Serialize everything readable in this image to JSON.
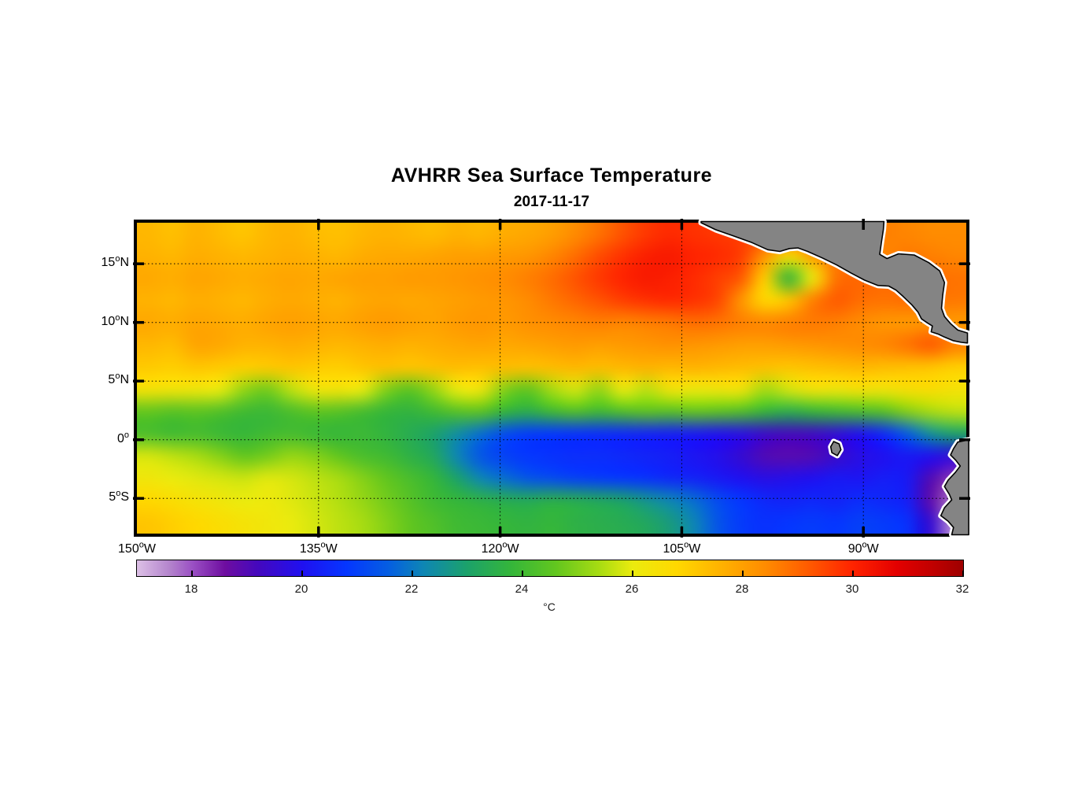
{
  "header": {
    "title": "AVHRR Sea Surface Temperature",
    "subtitle": "2017-11-17"
  },
  "chart_data": {
    "type": "heatmap",
    "title": "AVHRR Sea Surface Temperature",
    "date": "2017-11-17",
    "lon_range": [
      -150,
      -81.5
    ],
    "lat_range": [
      -8,
      18.5
    ],
    "grid_on": true,
    "grid_line_style": "dotted",
    "lat_ticks": [
      {
        "deg": "15",
        "sup": "o",
        "hem": "N",
        "lat": 15
      },
      {
        "deg": "10",
        "sup": "o",
        "hem": "N",
        "lat": 10
      },
      {
        "deg": "5",
        "sup": "o",
        "hem": "N",
        "lat": 5
      },
      {
        "deg": "0",
        "sup": "o",
        "hem": "",
        "lat": 0
      },
      {
        "deg": "5",
        "sup": "o",
        "hem": "S",
        "lat": -5
      }
    ],
    "lon_ticks": [
      {
        "deg": "150",
        "sup": "o",
        "hem": "W",
        "lon": -150
      },
      {
        "deg": "135",
        "sup": "o",
        "hem": "W",
        "lon": -135
      },
      {
        "deg": "120",
        "sup": "o",
        "hem": "W",
        "lon": -120
      },
      {
        "deg": "105",
        "sup": "o",
        "hem": "W",
        "lon": -105
      },
      {
        "deg": "90",
        "sup": "o",
        "hem": "W",
        "lon": -90
      }
    ],
    "gridlines": {
      "lats": [
        15,
        10,
        5,
        0,
        -5
      ],
      "lons": [
        -135,
        -120,
        -105,
        -90
      ]
    },
    "colorbar": {
      "min": 17,
      "max": 32,
      "ticks": [
        18,
        20,
        22,
        24,
        26,
        28,
        30,
        32
      ],
      "unit_label": "°C",
      "stops": [
        {
          "t": 17.0,
          "c": "#DCC0E6"
        },
        {
          "t": 17.6,
          "c": "#B383CC"
        },
        {
          "t": 18.0,
          "c": "#9B51C4"
        },
        {
          "t": 18.6,
          "c": "#6E0DA0"
        },
        {
          "t": 19.2,
          "c": "#4408BE"
        },
        {
          "t": 20.0,
          "c": "#2010F0"
        },
        {
          "t": 20.8,
          "c": "#0536FF"
        },
        {
          "t": 21.6,
          "c": "#0560E0"
        },
        {
          "t": 22.2,
          "c": "#0E86B4"
        },
        {
          "t": 23.0,
          "c": "#1CA26A"
        },
        {
          "t": 23.8,
          "c": "#35B63A"
        },
        {
          "t": 24.6,
          "c": "#62C61F"
        },
        {
          "t": 25.4,
          "c": "#A8DC12"
        },
        {
          "t": 26.0,
          "c": "#EBEB0E"
        },
        {
          "t": 26.8,
          "c": "#FFD800"
        },
        {
          "t": 27.6,
          "c": "#FFB200"
        },
        {
          "t": 28.4,
          "c": "#FF8C00"
        },
        {
          "t": 29.2,
          "c": "#FF5A00"
        },
        {
          "t": 30.0,
          "c": "#FF2300"
        },
        {
          "t": 30.8,
          "c": "#E30000"
        },
        {
          "t": 31.4,
          "c": "#C30000"
        },
        {
          "t": 32.0,
          "c": "#9E0000"
        }
      ]
    },
    "sst_grid": {
      "lons_start": -150,
      "lons_step": 2,
      "n_lons": 35,
      "lats": [
        18,
        16,
        14,
        12,
        10,
        8,
        6,
        4,
        2,
        0,
        -2,
        -4,
        -6,
        -8
      ],
      "sst": [
        [
          27.5,
          27.3,
          27.6,
          27.4,
          27.2,
          27.5,
          27.6,
          27.4,
          27.3,
          27.5,
          27.6,
          27.5,
          27.4,
          27.6,
          27.5,
          27.7,
          27.8,
          28.0,
          28.4,
          28.8,
          29.3,
          29.7,
          29.9,
          29.8,
          29.7,
          29.6,
          29.5,
          29.4,
          29.3,
          29.2,
          28.8,
          28.6,
          28.5,
          28.4,
          28.4
        ],
        [
          27.6,
          27.5,
          27.7,
          27.6,
          27.5,
          27.6,
          27.7,
          27.6,
          27.5,
          27.7,
          27.8,
          27.8,
          27.9,
          28.0,
          28.0,
          28.1,
          28.2,
          28.5,
          28.9,
          29.4,
          29.8,
          30.1,
          30.2,
          30.0,
          29.9,
          29.6,
          28.2,
          26.5,
          28.0,
          28.8,
          28.6,
          28.5,
          28.7,
          28.6,
          28.5
        ],
        [
          27.8,
          27.7,
          27.9,
          27.8,
          27.7,
          27.8,
          27.9,
          27.8,
          27.9,
          28.0,
          28.0,
          28.1,
          28.1,
          28.2,
          28.3,
          28.4,
          28.6,
          28.9,
          29.3,
          29.7,
          30.0,
          30.2,
          30.1,
          29.9,
          29.6,
          29.2,
          27.0,
          23.8,
          26.0,
          28.8,
          29.0,
          28.9,
          28.8,
          28.9,
          28.8
        ],
        [
          27.6,
          27.5,
          27.7,
          27.6,
          27.5,
          27.7,
          27.8,
          27.7,
          27.6,
          27.8,
          27.9,
          27.8,
          27.9,
          28.0,
          28.1,
          28.2,
          28.4,
          28.7,
          29.0,
          29.3,
          29.6,
          29.8,
          29.9,
          29.8,
          29.5,
          28.2,
          26.8,
          27.2,
          28.6,
          29.2,
          28.9,
          28.8,
          28.9,
          28.8,
          28.7
        ],
        [
          27.8,
          27.7,
          27.9,
          27.8,
          27.7,
          27.9,
          28.0,
          27.9,
          27.8,
          28.0,
          28.1,
          28.0,
          27.9,
          28.1,
          28.2,
          28.1,
          28.3,
          28.4,
          28.5,
          28.6,
          28.5,
          28.6,
          28.7,
          28.9,
          28.8,
          28.6,
          28.5,
          28.6,
          28.7,
          28.6,
          28.4,
          28.2,
          28.1,
          28.2,
          28.1
        ],
        [
          27.5,
          27.4,
          27.9,
          27.8,
          27.6,
          27.6,
          27.7,
          27.6,
          27.5,
          27.6,
          27.7,
          27.6,
          27.7,
          27.8,
          27.9,
          27.8,
          27.9,
          28.0,
          28.1,
          28.0,
          28.1,
          28.2,
          28.3,
          28.2,
          28.1,
          28.0,
          28.0,
          28.1,
          28.2,
          28.3,
          28.4,
          28.5,
          28.8,
          29.2,
          28.6
        ],
        [
          27.1,
          27.0,
          27.2,
          27.1,
          27.0,
          27.1,
          27.2,
          27.1,
          27.0,
          27.2,
          27.3,
          27.2,
          27.3,
          27.4,
          27.3,
          27.4,
          27.3,
          27.4,
          27.5,
          27.4,
          27.5,
          27.6,
          27.5,
          27.6,
          27.5,
          27.4,
          27.3,
          27.2,
          27.3,
          27.4,
          27.5,
          27.4,
          27.3,
          27.2,
          27.0
        ],
        [
          26.4,
          26.3,
          26.2,
          26.0,
          25.2,
          24.8,
          25.6,
          26.2,
          26.3,
          26.0,
          25.0,
          24.5,
          25.2,
          26.0,
          26.2,
          25.0,
          24.6,
          25.4,
          25.8,
          25.2,
          26.0,
          25.6,
          26.3,
          26.1,
          26.2,
          26.3,
          25.4,
          25.8,
          26.3,
          26.2,
          26.4,
          26.3,
          26.5,
          26.6,
          26.4
        ],
        [
          24.6,
          24.4,
          24.5,
          24.3,
          24.0,
          23.9,
          24.2,
          24.5,
          24.4,
          24.1,
          23.8,
          23.7,
          24.0,
          24.4,
          24.5,
          23.8,
          23.5,
          24.0,
          24.3,
          24.0,
          24.3,
          24.5,
          24.4,
          24.6,
          24.5,
          24.3,
          23.8,
          23.5,
          23.8,
          24.0,
          24.2,
          24.4,
          25.0,
          25.4,
          25.6
        ],
        [
          24.2,
          24.0,
          24.1,
          23.9,
          23.8,
          24.0,
          24.1,
          23.9,
          23.8,
          23.9,
          23.7,
          23.4,
          23.0,
          22.4,
          21.8,
          21.2,
          20.9,
          20.8,
          20.7,
          20.6,
          20.5,
          20.4,
          20.3,
          20.2,
          20.0,
          19.8,
          19.4,
          19.2,
          19.3,
          19.6,
          20.0,
          20.5,
          21.5,
          22.5,
          23.0
        ],
        [
          25.8,
          25.6,
          25.4,
          25.0,
          24.6,
          24.8,
          25.2,
          25.0,
          24.6,
          24.2,
          24.0,
          23.6,
          23.2,
          22.2,
          21.4,
          21.0,
          20.8,
          20.7,
          20.6,
          20.6,
          20.5,
          20.4,
          20.3,
          20.1,
          19.9,
          19.5,
          19.0,
          18.9,
          19.0,
          19.4,
          19.8,
          20.0,
          20.2,
          20.0,
          19.6
        ],
        [
          26.2,
          26.0,
          25.9,
          25.8,
          25.7,
          25.9,
          25.8,
          25.6,
          25.4,
          25.0,
          24.6,
          24.2,
          23.8,
          23.0,
          22.2,
          21.8,
          21.4,
          21.2,
          21.0,
          20.9,
          20.8,
          20.7,
          20.5,
          20.4,
          20.2,
          20.0,
          19.8,
          19.9,
          20.0,
          20.2,
          20.1,
          20.3,
          20.2,
          19.0,
          18.2
        ],
        [
          26.8,
          26.6,
          26.4,
          26.2,
          26.0,
          26.1,
          25.9,
          25.7,
          25.5,
          25.2,
          24.8,
          24.4,
          24.0,
          23.8,
          23.6,
          23.4,
          23.3,
          23.5,
          23.4,
          23.2,
          23.0,
          22.6,
          22.2,
          21.8,
          21.2,
          20.8,
          20.5,
          20.4,
          20.5,
          20.4,
          20.6,
          20.5,
          20.3,
          18.8,
          17.6
        ],
        [
          27.2,
          27.0,
          26.8,
          26.6,
          26.4,
          26.2,
          26.0,
          25.8,
          25.6,
          25.4,
          25.0,
          24.6,
          24.3,
          24.0,
          23.9,
          23.8,
          23.7,
          23.8,
          23.6,
          23.5,
          23.4,
          23.2,
          22.8,
          22.2,
          21.4,
          20.9,
          20.7,
          20.8,
          20.9,
          20.8,
          21.0,
          20.9,
          20.7,
          19.5,
          17.4
        ]
      ]
    },
    "land": {
      "fill": "#848484",
      "coast_color": "#000000",
      "fringe_color": "#FFFFFF",
      "polygons": [
        {
          "name": "mexico-central-america",
          "pts": [
            [
              -103.4,
              18.5
            ],
            [
              -102.2,
              17.9
            ],
            [
              -100.8,
              17.4
            ],
            [
              -99.2,
              16.8
            ],
            [
              -97.9,
              16.2
            ],
            [
              -96.9,
              16.05
            ],
            [
              -96.1,
              16.3
            ],
            [
              -95.4,
              16.35
            ],
            [
              -94.6,
              16.05
            ],
            [
              -93.4,
              15.5
            ],
            [
              -92.2,
              14.9
            ],
            [
              -91.0,
              14.2
            ],
            [
              -89.9,
              13.6
            ],
            [
              -88.8,
              13.15
            ],
            [
              -87.9,
              13.1
            ],
            [
              -87.3,
              12.75
            ],
            [
              -86.7,
              12.2
            ],
            [
              -86.0,
              11.5
            ],
            [
              -85.5,
              10.9
            ],
            [
              -85.2,
              10.3
            ],
            [
              -84.7,
              9.95
            ],
            [
              -84.3,
              9.7
            ],
            [
              -84.4,
              9.2
            ],
            [
              -83.8,
              9.0
            ],
            [
              -83.3,
              8.75
            ],
            [
              -82.6,
              8.45
            ],
            [
              -81.9,
              8.3
            ],
            [
              -81.4,
              8.25
            ],
            [
              -81.4,
              9.1
            ],
            [
              -82.2,
              9.35
            ],
            [
              -82.8,
              9.9
            ],
            [
              -83.3,
              10.5
            ],
            [
              -83.55,
              11.2
            ],
            [
              -83.45,
              12.3
            ],
            [
              -83.3,
              13.4
            ],
            [
              -83.7,
              14.4
            ],
            [
              -84.6,
              15.1
            ],
            [
              -85.8,
              15.75
            ],
            [
              -87.1,
              15.85
            ],
            [
              -88.05,
              15.45
            ],
            [
              -88.65,
              15.8
            ],
            [
              -88.5,
              16.9
            ],
            [
              -88.35,
              17.9
            ],
            [
              -88.3,
              18.6
            ],
            [
              -103.4,
              18.6
            ]
          ]
        },
        {
          "name": "south-america",
          "pts": [
            [
              -81.3,
              0.0
            ],
            [
              -82.2,
              -0.2
            ],
            [
              -82.55,
              -0.76
            ],
            [
              -82.8,
              -1.3
            ],
            [
              -82.35,
              -1.77
            ],
            [
              -82.0,
              -2.24
            ],
            [
              -82.4,
              -2.78
            ],
            [
              -83.0,
              -3.45
            ],
            [
              -83.3,
              -3.99
            ],
            [
              -82.9,
              -4.66
            ],
            [
              -82.7,
              -5.13
            ],
            [
              -83.3,
              -5.8
            ],
            [
              -83.6,
              -6.47
            ],
            [
              -83.0,
              -6.94
            ],
            [
              -82.55,
              -7.48
            ],
            [
              -82.7,
              -8.1
            ],
            [
              -81.3,
              -8.1
            ]
          ]
        },
        {
          "name": "galapagos-islands",
          "pts": [
            [
              -92.45,
              -0.15
            ],
            [
              -92.0,
              -0.35
            ],
            [
              -91.85,
              -0.85
            ],
            [
              -92.15,
              -1.35
            ],
            [
              -92.6,
              -1.1
            ],
            [
              -92.7,
              -0.6
            ]
          ]
        }
      ]
    }
  }
}
